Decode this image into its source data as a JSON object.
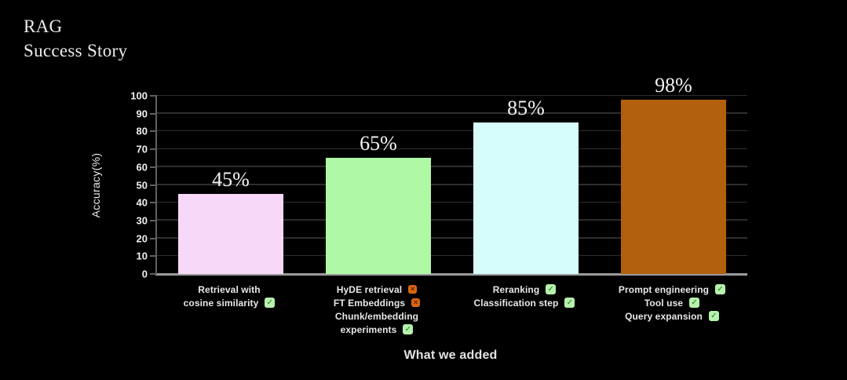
{
  "slide": {
    "title_line1": "RAG",
    "title_line2": "Success Story"
  },
  "chart_data": {
    "type": "bar",
    "title": "RAG Success Story",
    "xlabel": "What we added",
    "ylabel": "Accuracy(%)",
    "ylim": [
      0,
      100
    ],
    "yticks": [
      0,
      10,
      20,
      30,
      40,
      50,
      60,
      70,
      80,
      90,
      100
    ],
    "grid": true,
    "legend": "none",
    "background_color": "#000000",
    "icon_colors": {
      "check_bg": "#b6f1ad",
      "check_glyph": "#1e7a24",
      "cross_bg": "#de660f",
      "cross_glyph": "#3c1c00"
    },
    "categories": [
      "Retrieval with cosine similarity",
      "HyDE retrieval / FT Embeddings / Chunk/embedding experiments",
      "Reranking / Classification step",
      "Prompt engineering / Tool use / Query expansion"
    ],
    "values": [
      45,
      65,
      85,
      98
    ],
    "bars": [
      {
        "value": 45,
        "value_label": "45%",
        "color": "#f8d8f8",
        "label_lines": [
          {
            "text": "Retrieval with",
            "icon": null
          },
          {
            "text": "cosine similarity",
            "icon": "check"
          }
        ]
      },
      {
        "value": 65,
        "value_label": "65%",
        "color": "#aff8a6",
        "label_lines": [
          {
            "text": "HyDE retrieval",
            "icon": "cross"
          },
          {
            "text": "FT Embeddings",
            "icon": "cross"
          },
          {
            "text": "Chunk/embedding",
            "icon": null
          },
          {
            "text": "experiments",
            "icon": "check"
          }
        ]
      },
      {
        "value": 85,
        "value_label": "85%",
        "color": "#d6fbfb",
        "label_lines": [
          {
            "text": "Reranking",
            "icon": "check"
          },
          {
            "text": "Classification step",
            "icon": "check"
          }
        ]
      },
      {
        "value": 98,
        "value_label": "98%",
        "color": "#b2600e",
        "label_lines": [
          {
            "text": "Prompt engineering",
            "icon": "check"
          },
          {
            "text": "Tool use",
            "icon": "check"
          },
          {
            "text": "Query expansion",
            "icon": "check"
          }
        ]
      }
    ],
    "icon_glyphs": {
      "check": "✓",
      "cross": "✕"
    }
  }
}
